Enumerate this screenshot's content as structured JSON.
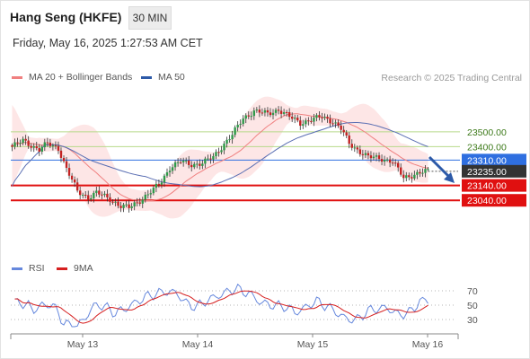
{
  "header": {
    "title": "Hang Seng (HKFE)",
    "timeframe": "30 MIN",
    "datetime": "Friday, May 16, 2025 1:27:53 AM CET"
  },
  "legend": {
    "bollinger_label": "MA 20 + Bollinger Bands",
    "ma50_label": "MA 50",
    "credit": "Research © 2025 Trading Central",
    "rsi_label": "RSI",
    "rsi_ma_label": "9MA"
  },
  "colors": {
    "bull": "#2f9a4a",
    "bear": "#c32222",
    "ma20": "#f08080",
    "band_fill": "#fde2e2",
    "ma50": "#5b6fb3",
    "resistance": "#b7d98a",
    "pivot": "#2f6fe0",
    "support": "#e01010",
    "current": "#333333",
    "rsi": "#6688dd",
    "rsi_ma": "#d62020",
    "arrow": "#2d5aa8"
  },
  "chart_data": {
    "type": "candlestick",
    "price_range": [
      22680,
      23800
    ],
    "x_labels": [
      "May 13",
      "May 14",
      "May 15",
      "May 16"
    ],
    "levels": [
      {
        "value": 23500,
        "label": "23500.00",
        "kind": "resistance"
      },
      {
        "value": 23400,
        "label": "23400.00",
        "kind": "resistance"
      },
      {
        "value": 23310,
        "label": "23310.00",
        "kind": "pivot"
      },
      {
        "value": 23235,
        "label": "23235.00",
        "kind": "current"
      },
      {
        "value": 23140,
        "label": "23140.00",
        "kind": "support"
      },
      {
        "value": 23040,
        "label": "23040.00",
        "kind": "support"
      }
    ],
    "rsi_ticks": [
      70,
      50,
      30
    ],
    "rsi_range": [
      15,
      85
    ]
  }
}
